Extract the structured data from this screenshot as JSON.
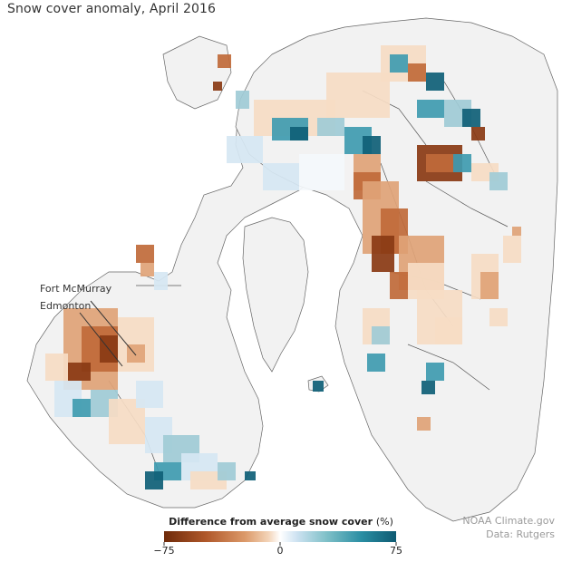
{
  "title": "Snow cover anomaly, April 2016",
  "annotations": {
    "city_1": "Fort McMurray",
    "city_2": "Edmonton"
  },
  "credit": {
    "line_1": "NOAA Climate.gov",
    "line_2": "Data: Rutgers"
  },
  "legend": {
    "title": "Difference from average snow cover",
    "unit": "(%)",
    "min": -75,
    "mid": 0,
    "max": 75,
    "tick_min": "−75",
    "tick_mid": "0",
    "tick_max": "75",
    "color_stops": [
      "#6e2a0a",
      "#b0582a",
      "#dc9a6a",
      "#f3d4b8",
      "#ffffff",
      "#cfe3f2",
      "#7fc0c8",
      "#2a8ea3",
      "#0e5a72"
    ]
  },
  "colors": {
    "land": "#f2f2f2",
    "ocean": "#ffffff",
    "border": "#555555",
    "deficit": "#c05f2e",
    "surplus": "#2a8ea3"
  }
}
